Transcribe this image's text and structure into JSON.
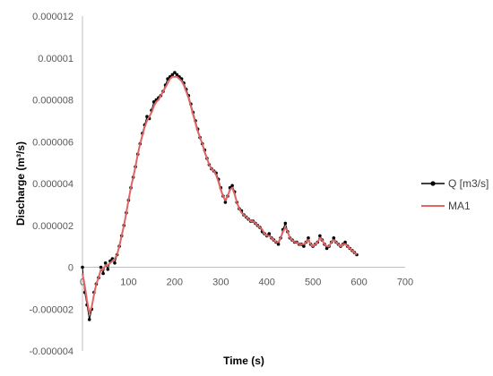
{
  "chart_data": {
    "type": "line",
    "xlabel": "Time (s)",
    "ylabel": "Discharge (m³/s)",
    "xlim": [
      0,
      700
    ],
    "ylim": [
      -4e-06,
      1.2e-05
    ],
    "x_ticks": [
      0,
      100,
      200,
      300,
      400,
      500,
      600,
      700
    ],
    "x_tick_labels": [
      "0",
      "100",
      "200",
      "300",
      "400",
      "500",
      "600",
      "700"
    ],
    "y_ticks": [
      -4e-06,
      -2e-06,
      0,
      2e-06,
      4e-06,
      6e-06,
      8e-06,
      1e-05,
      1.2e-05
    ],
    "y_tick_labels": [
      "-0.000004",
      "-0.000002",
      "0",
      "0.000002",
      "0.000004",
      "0.000006",
      "0.000008",
      "0.00001",
      "0.000012"
    ],
    "grid": false,
    "legend_position": "right",
    "series": [
      {
        "name": "Q [m3/s]",
        "style": "line-markers",
        "color": "#000000",
        "x": [
          0,
          5,
          10,
          15,
          20,
          25,
          30,
          35,
          40,
          45,
          50,
          55,
          60,
          65,
          70,
          75,
          80,
          85,
          90,
          95,
          100,
          105,
          110,
          115,
          120,
          125,
          130,
          135,
          140,
          145,
          150,
          155,
          160,
          165,
          170,
          175,
          180,
          185,
          190,
          195,
          200,
          205,
          210,
          215,
          220,
          225,
          230,
          235,
          240,
          245,
          250,
          255,
          260,
          265,
          270,
          275,
          280,
          285,
          290,
          295,
          300,
          305,
          310,
          315,
          320,
          325,
          330,
          335,
          340,
          345,
          350,
          355,
          360,
          365,
          370,
          375,
          380,
          385,
          390,
          395,
          400,
          405,
          410,
          415,
          420,
          425,
          430,
          435,
          440,
          445,
          450,
          455,
          460,
          465,
          470,
          475,
          480,
          485,
          490,
          495,
          500,
          505,
          510,
          515,
          520,
          525,
          530,
          535,
          540,
          545,
          550,
          555,
          560,
          565,
          570,
          575,
          580,
          585,
          590,
          595
        ],
        "values": [
          0.0,
          -1.2e-06,
          -1.8e-06,
          -2.5e-06,
          -2e-06,
          -1.2e-06,
          -8e-07,
          -5e-07,
          0.0,
          -3e-07,
          2e-07,
          -1e-07,
          3e-07,
          4e-07,
          2e-07,
          6e-07,
          1e-06,
          1.5e-06,
          2e-06,
          2.6e-06,
          3.2e-06,
          3.8e-06,
          4.3e-06,
          4.8e-06,
          5.4e-06,
          5.9e-06,
          6.4e-06,
          6.8e-06,
          7.2e-06,
          7.1e-06,
          7.5e-06,
          7.9e-06,
          8e-06,
          8.1e-06,
          8.2e-06,
          8.4e-06,
          8.7e-06,
          9e-06,
          9.1e-06,
          9.2e-06,
          9.3e-06,
          9.2e-06,
          9.1e-06,
          9e-06,
          8.8e-06,
          8.5e-06,
          8.2e-06,
          7.8e-06,
          7.4e-06,
          7e-06,
          6.6e-06,
          6.2e-06,
          5.9e-06,
          5.6e-06,
          5.2e-06,
          4.9e-06,
          4.7e-06,
          4.6e-06,
          4.5e-06,
          4.2e-06,
          3.8e-06,
          3.4e-06,
          3.1e-06,
          3.4e-06,
          3.8e-06,
          3.9e-06,
          3.6e-06,
          3.1e-06,
          2.8e-06,
          2.7e-06,
          2.5e-06,
          2.4e-06,
          2.3e-06,
          2.2e-06,
          2.2e-06,
          2.1e-06,
          2e-06,
          1.9e-06,
          1.7e-06,
          1.6e-06,
          1.5e-06,
          1.6e-06,
          1.4e-06,
          1.3e-06,
          1.2e-06,
          1.1e-06,
          1.4e-06,
          1.8e-06,
          2.1e-06,
          1.7e-06,
          1.4e-06,
          1.3e-06,
          1.2e-06,
          1.2e-06,
          1.1e-06,
          1.1e-06,
          1e-06,
          1.2e-06,
          1.4e-06,
          1.1e-06,
          1e-06,
          1.1e-06,
          1.2e-06,
          1.5e-06,
          1.3e-06,
          1.1e-06,
          9e-07,
          1e-06,
          1.2e-06,
          1.4e-06,
          1.2e-06,
          1.1e-06,
          1e-06,
          1.1e-06,
          1.2e-06,
          1e-06,
          9e-07,
          8e-07,
          7e-07,
          6e-07
        ]
      },
      {
        "name": "MA1",
        "style": "line",
        "color": "#e06666",
        "x": [
          0,
          5,
          10,
          15,
          20,
          25,
          30,
          35,
          40,
          45,
          50,
          55,
          60,
          65,
          70,
          75,
          80,
          85,
          90,
          95,
          100,
          105,
          110,
          115,
          120,
          125,
          130,
          135,
          140,
          145,
          150,
          155,
          160,
          165,
          170,
          175,
          180,
          185,
          190,
          195,
          200,
          205,
          210,
          215,
          220,
          225,
          230,
          235,
          240,
          245,
          250,
          255,
          260,
          265,
          270,
          275,
          280,
          285,
          290,
          295,
          300,
          305,
          310,
          315,
          320,
          325,
          330,
          335,
          340,
          345,
          350,
          355,
          360,
          365,
          370,
          375,
          380,
          385,
          390,
          395,
          400,
          405,
          410,
          415,
          420,
          425,
          430,
          435,
          440,
          445,
          450,
          455,
          460,
          465,
          470,
          475,
          480,
          485,
          490,
          495,
          500,
          505,
          510,
          515,
          520,
          525,
          530,
          535,
          540,
          545,
          550,
          555,
          560,
          565,
          570,
          575,
          580,
          585,
          590,
          595
        ],
        "values": [
          -3e-07,
          -9e-07,
          -1.6e-06,
          -2.2e-06,
          -1.9e-06,
          -1.3e-06,
          -8e-07,
          -5e-07,
          -1e-07,
          -1e-07,
          1e-07,
          1e-07,
          2e-07,
          3e-07,
          4e-07,
          6e-07,
          1e-06,
          1.5e-06,
          2e-06,
          2.6e-06,
          3.2e-06,
          3.8e-06,
          4.3e-06,
          4.8e-06,
          5.4e-06,
          5.9e-06,
          6.3e-06,
          6.7e-06,
          7e-06,
          7.2e-06,
          7.4e-06,
          7.7e-06,
          7.9e-06,
          8e-06,
          8.2e-06,
          8.4e-06,
          8.6e-06,
          8.8e-06,
          9e-06,
          9.1e-06,
          9.1e-06,
          9.1e-06,
          9e-06,
          8.9e-06,
          8.7e-06,
          8.4e-06,
          8.1e-06,
          7.7e-06,
          7.3e-06,
          6.9e-06,
          6.5e-06,
          6.2e-06,
          5.9e-06,
          5.5e-06,
          5.2e-06,
          4.9e-06,
          4.7e-06,
          4.6e-06,
          4.4e-06,
          4.1e-06,
          3.7e-06,
          3.4e-06,
          3.2e-06,
          3.4e-06,
          3.7e-06,
          3.8e-06,
          3.5e-06,
          3.1e-06,
          2.8e-06,
          2.6e-06,
          2.5e-06,
          2.4e-06,
          2.3e-06,
          2.2e-06,
          2.2e-06,
          2.1e-06,
          2e-06,
          1.9e-06,
          1.8e-06,
          1.6e-06,
          1.5e-06,
          1.5e-06,
          1.4e-06,
          1.3e-06,
          1.2e-06,
          1.2e-06,
          1.4e-06,
          1.7e-06,
          1.9e-06,
          1.7e-06,
          1.4e-06,
          1.3e-06,
          1.2e-06,
          1.2e-06,
          1.1e-06,
          1.1e-06,
          1.1e-06,
          1.2e-06,
          1.3e-06,
          1.1e-06,
          1e-06,
          1.1e-06,
          1.2e-06,
          1.4e-06,
          1.3e-06,
          1.1e-06,
          1e-06,
          1e-06,
          1.2e-06,
          1.3e-06,
          1.2e-06,
          1.1e-06,
          1e-06,
          1.1e-06,
          1.1e-06,
          1e-06,
          9e-07,
          8e-07,
          7e-07,
          6e-07
        ]
      }
    ]
  }
}
